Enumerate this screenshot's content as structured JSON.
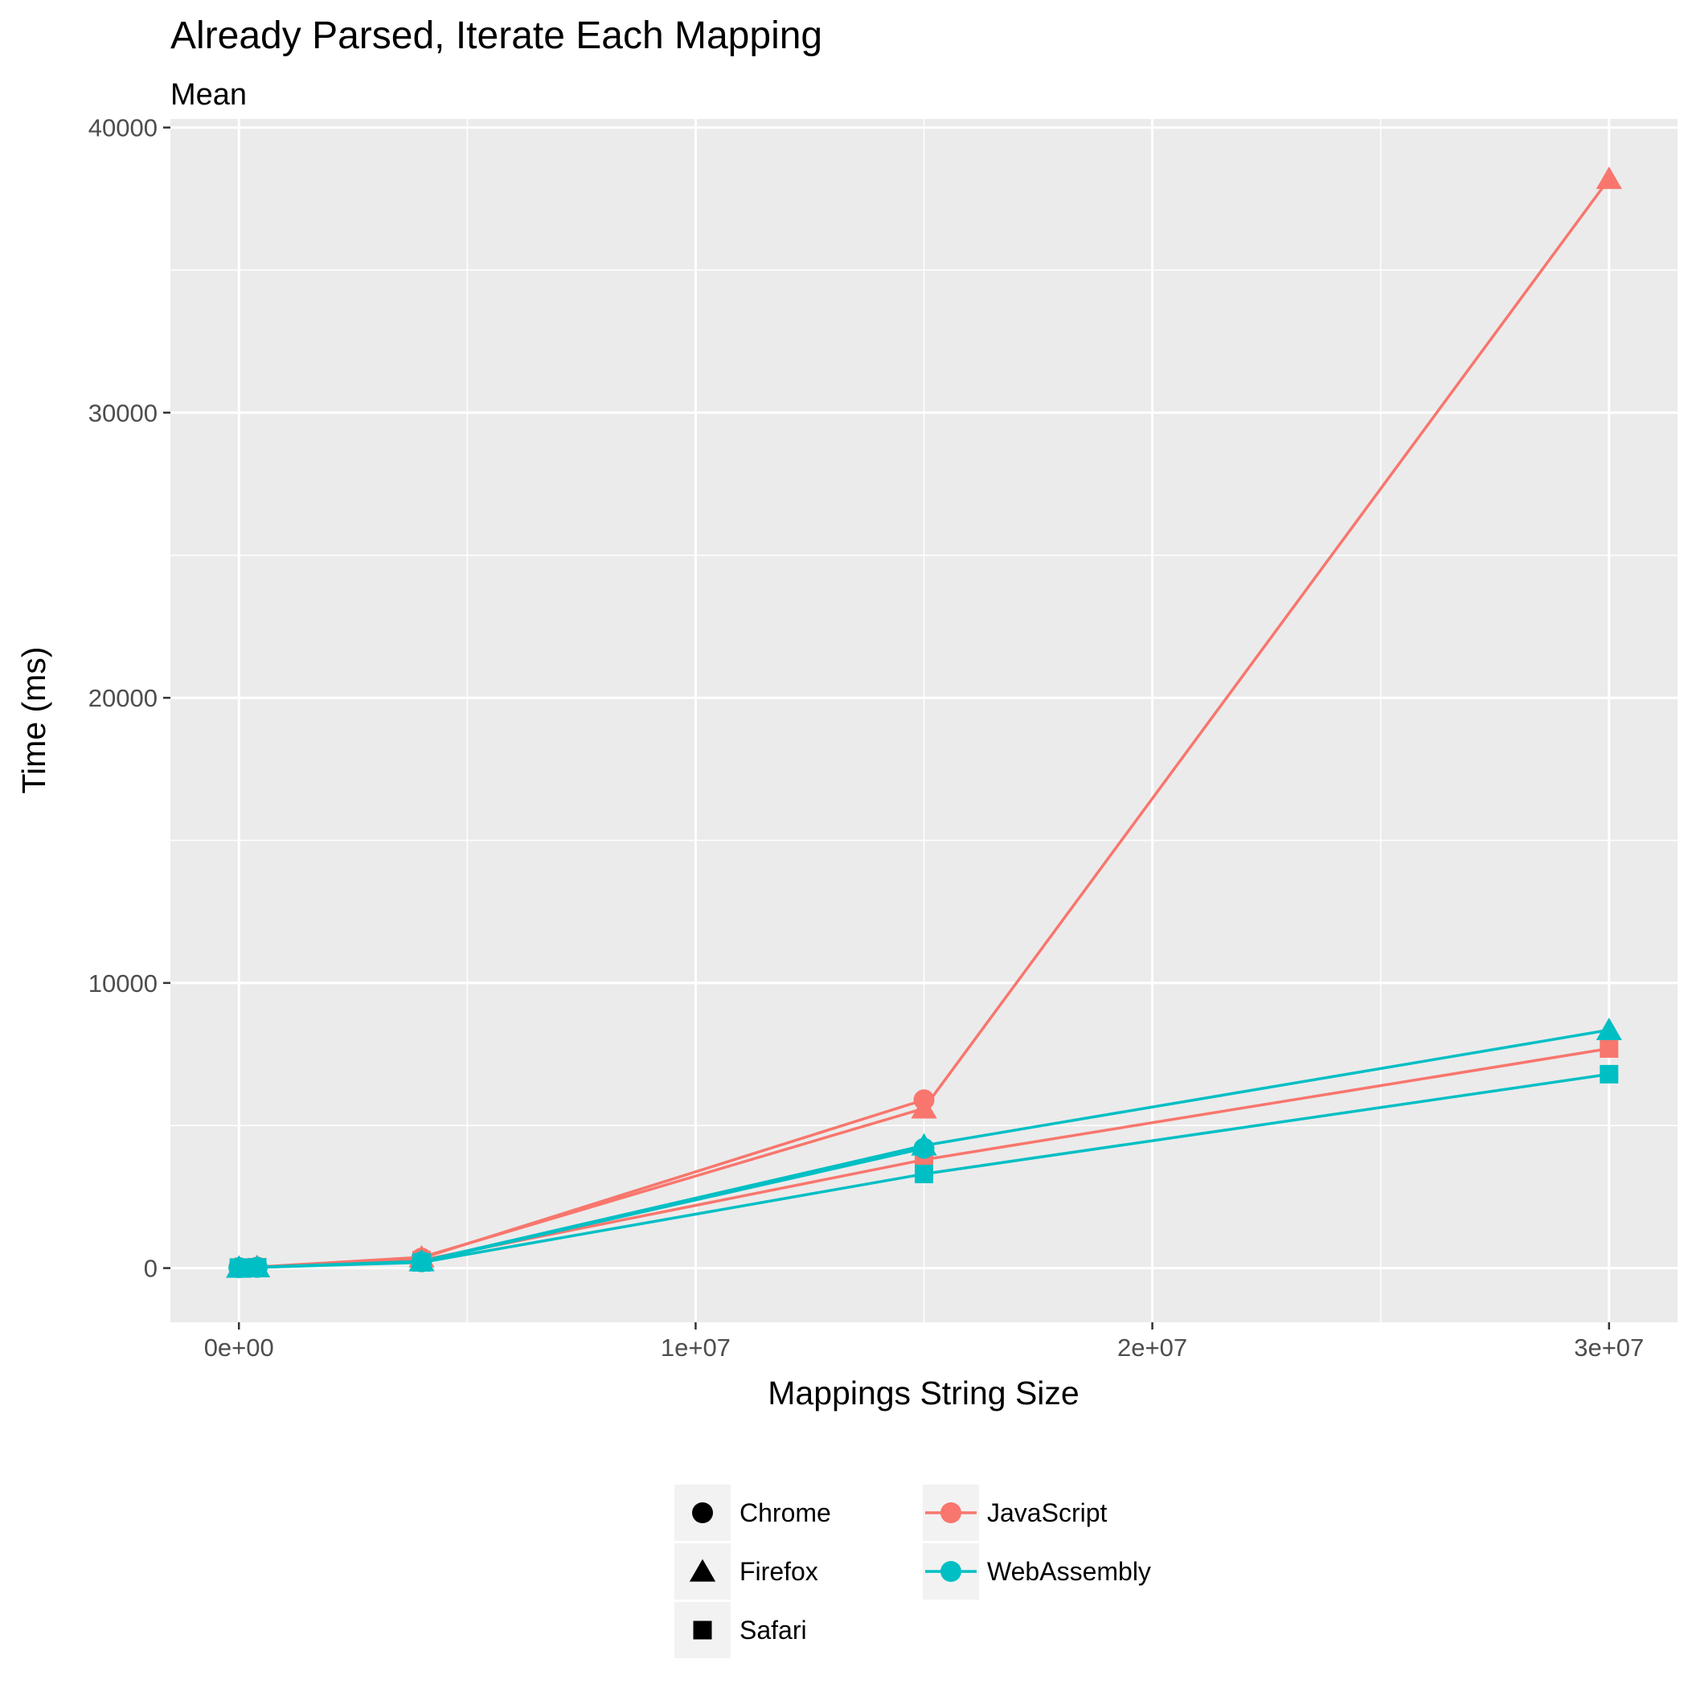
{
  "chart_data": {
    "type": "line",
    "title": "Already Parsed, Iterate Each Mapping",
    "subtitle": "Mean",
    "xlabel": "Mappings String Size",
    "ylabel": "Time (ms)",
    "xlim": [
      -1500000,
      31500000
    ],
    "ylim": [
      -1900,
      40300
    ],
    "xticks": [
      {
        "value": 0,
        "label": "0e+00"
      },
      {
        "value": 10000000,
        "label": "1e+07"
      },
      {
        "value": 20000000,
        "label": "2e+07"
      },
      {
        "value": 30000000,
        "label": "3e+07"
      }
    ],
    "yticks": [
      {
        "value": 0,
        "label": "0"
      },
      {
        "value": 10000,
        "label": "10000"
      },
      {
        "value": 20000,
        "label": "20000"
      },
      {
        "value": 30000,
        "label": "30000"
      },
      {
        "value": 40000,
        "label": "40000"
      }
    ],
    "x_minor_breaks": [
      5000000,
      15000000,
      25000000
    ],
    "y_minor_breaks": [
      5000,
      15000,
      25000,
      35000
    ],
    "grid": true,
    "legend_position": "bottom",
    "colors": {
      "JavaScript": "#F8766D",
      "WebAssembly": "#00BFC4",
      "panel": "#EBEBEB",
      "grid": "#FFFFFF"
    },
    "series": [
      {
        "implementation": "JavaScript",
        "browser": "Chrome",
        "x": [
          0,
          400000,
          4000000,
          15000000
        ],
        "y": [
          20,
          35,
          350,
          5900
        ]
      },
      {
        "implementation": "JavaScript",
        "browser": "Firefox",
        "x": [
          0,
          400000,
          4000000,
          15000000,
          30000000
        ],
        "y": [
          20,
          40,
          380,
          5600,
          38200
        ]
      },
      {
        "implementation": "JavaScript",
        "browser": "Safari",
        "x": [
          0,
          400000,
          4000000,
          15000000,
          30000000
        ],
        "y": [
          20,
          30,
          280,
          3800,
          7700
        ]
      },
      {
        "implementation": "WebAssembly",
        "browser": "Chrome",
        "x": [
          0,
          400000,
          4000000,
          15000000
        ],
        "y": [
          15,
          25,
          220,
          4200
        ]
      },
      {
        "implementation": "WebAssembly",
        "browser": "Firefox",
        "x": [
          0,
          400000,
          4000000,
          15000000,
          30000000
        ],
        "y": [
          15,
          30,
          240,
          4300,
          8350
        ]
      },
      {
        "implementation": "WebAssembly",
        "browser": "Safari",
        "x": [
          0,
          400000,
          4000000,
          15000000,
          30000000
        ],
        "y": [
          15,
          25,
          200,
          3300,
          6800
        ]
      }
    ],
    "legend": {
      "browsers": [
        {
          "label": "Chrome",
          "shape": "circle"
        },
        {
          "label": "Firefox",
          "shape": "triangle"
        },
        {
          "label": "Safari",
          "shape": "square"
        }
      ],
      "implementations": [
        {
          "label": "JavaScript"
        },
        {
          "label": "WebAssembly"
        }
      ]
    }
  }
}
